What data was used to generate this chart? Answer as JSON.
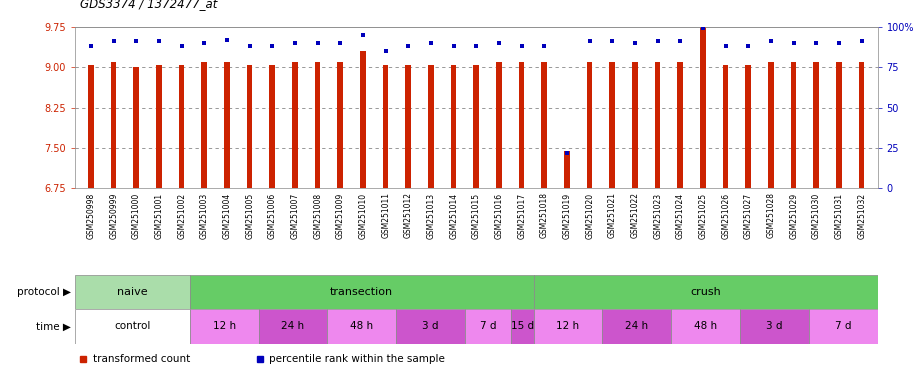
{
  "title": "GDS3374 / 1372477_at",
  "samples": [
    "GSM250998",
    "GSM250999",
    "GSM251000",
    "GSM251001",
    "GSM251002",
    "GSM251003",
    "GSM251004",
    "GSM251005",
    "GSM251006",
    "GSM251007",
    "GSM251008",
    "GSM251009",
    "GSM251010",
    "GSM251011",
    "GSM251012",
    "GSM251013",
    "GSM251014",
    "GSM251015",
    "GSM251016",
    "GSM251017",
    "GSM251018",
    "GSM251019",
    "GSM251020",
    "GSM251021",
    "GSM251022",
    "GSM251023",
    "GSM251024",
    "GSM251025",
    "GSM251026",
    "GSM251027",
    "GSM251028",
    "GSM251029",
    "GSM251030",
    "GSM251031",
    "GSM251032"
  ],
  "red_values": [
    9.05,
    9.1,
    9.0,
    9.05,
    9.05,
    9.1,
    9.1,
    9.05,
    9.05,
    9.1,
    9.1,
    9.1,
    9.3,
    9.05,
    9.05,
    9.05,
    9.05,
    9.05,
    9.1,
    9.1,
    9.1,
    7.45,
    9.1,
    9.1,
    9.1,
    9.1,
    9.1,
    9.75,
    9.05,
    9.05,
    9.1,
    9.1,
    9.1,
    9.1,
    9.1
  ],
  "blue_values": [
    88,
    91,
    91,
    91,
    88,
    90,
    92,
    88,
    88,
    90,
    90,
    90,
    95,
    85,
    88,
    90,
    88,
    88,
    90,
    88,
    88,
    22,
    91,
    91,
    90,
    91,
    91,
    99,
    88,
    88,
    91,
    90,
    90,
    90,
    91
  ],
  "ylim_left": [
    6.75,
    9.75
  ],
  "ylim_right": [
    0,
    100
  ],
  "yticks_left": [
    6.75,
    7.5,
    8.25,
    9.0,
    9.75
  ],
  "yticks_right": [
    0,
    25,
    50,
    75,
    100
  ],
  "bar_color": "#cc2200",
  "marker_color": "#0000bb",
  "bg_color": "#ffffff",
  "grid_color": "#888888",
  "protocol_groups": [
    {
      "label": "naive",
      "start": 0,
      "end": 5,
      "color": "#aaddaa"
    },
    {
      "label": "transection",
      "start": 5,
      "end": 20,
      "color": "#66cc66"
    },
    {
      "label": "crush",
      "start": 20,
      "end": 35,
      "color": "#66cc66"
    }
  ],
  "time_groups": [
    {
      "label": "control",
      "start": 0,
      "end": 5,
      "color": "#ffffff"
    },
    {
      "label": "12 h",
      "start": 5,
      "end": 8,
      "color": "#ee88ee"
    },
    {
      "label": "24 h",
      "start": 8,
      "end": 11,
      "color": "#cc55cc"
    },
    {
      "label": "48 h",
      "start": 11,
      "end": 14,
      "color": "#ee88ee"
    },
    {
      "label": "3 d",
      "start": 14,
      "end": 17,
      "color": "#cc55cc"
    },
    {
      "label": "7 d",
      "start": 17,
      "end": 19,
      "color": "#ee88ee"
    },
    {
      "label": "15 d",
      "start": 19,
      "end": 20,
      "color": "#cc55cc"
    },
    {
      "label": "12 h",
      "start": 20,
      "end": 23,
      "color": "#ee88ee"
    },
    {
      "label": "24 h",
      "start": 23,
      "end": 26,
      "color": "#cc55cc"
    },
    {
      "label": "48 h",
      "start": 26,
      "end": 29,
      "color": "#ee88ee"
    },
    {
      "label": "3 d",
      "start": 29,
      "end": 32,
      "color": "#cc55cc"
    },
    {
      "label": "7 d",
      "start": 32,
      "end": 35,
      "color": "#ee88ee"
    }
  ],
  "legend_items": [
    {
      "color": "#cc2200",
      "label": "transformed count"
    },
    {
      "color": "#0000bb",
      "label": "percentile rank within the sample"
    }
  ],
  "bar_width": 0.25,
  "xtick_label_area_bg": "#dddddd",
  "row_bg": "#cccccc"
}
